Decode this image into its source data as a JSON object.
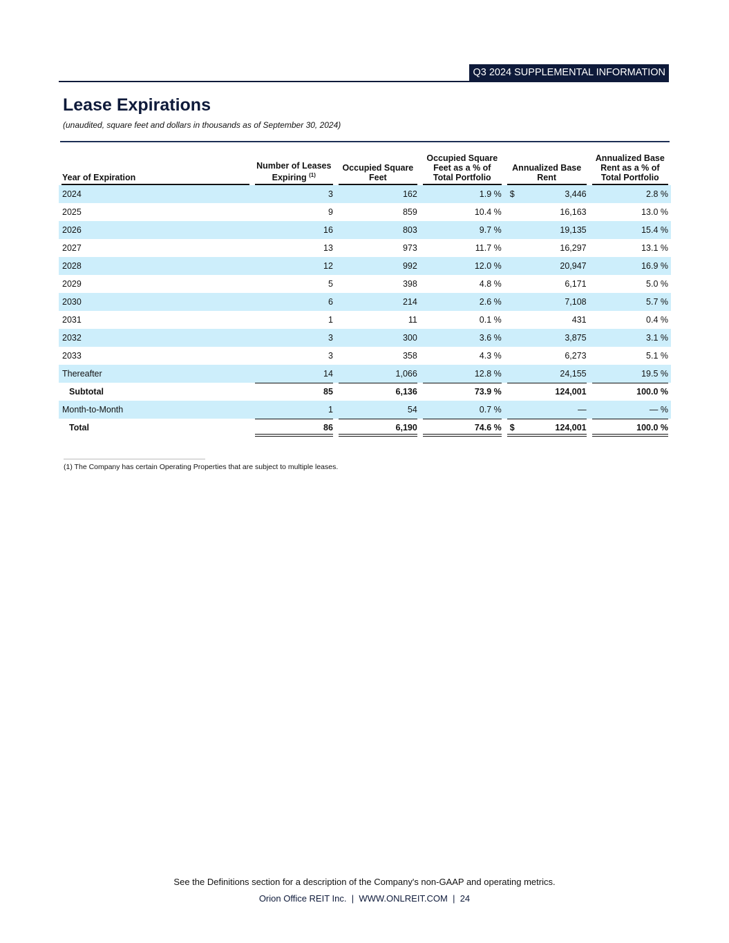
{
  "header": {
    "banner": "Q3 2024 SUPPLEMENTAL INFORMATION"
  },
  "title": "Lease Expirations",
  "subtitle": "(unaudited, square feet and dollars in thousands as of September 30, 2024)",
  "table": {
    "columns": [
      "Year of Expiration",
      "Number of Leases Expiring",
      "Occupied Square Feet",
      "Occupied Square Feet as a % of Total Portfolio",
      "Annualized Base Rent",
      "Annualized Base Rent as a % of Total Portfolio"
    ],
    "column_note": "(1)",
    "rows": [
      {
        "year": "2024",
        "leases": "3",
        "sqft": "162",
        "sqft_pct": "1.9 %",
        "currency": "$",
        "rent": "3,446",
        "rent_pct": "2.8 %"
      },
      {
        "year": "2025",
        "leases": "9",
        "sqft": "859",
        "sqft_pct": "10.4 %",
        "rent": "16,163",
        "rent_pct": "13.0 %"
      },
      {
        "year": "2026",
        "leases": "16",
        "sqft": "803",
        "sqft_pct": "9.7 %",
        "rent": "19,135",
        "rent_pct": "15.4 %"
      },
      {
        "year": "2027",
        "leases": "13",
        "sqft": "973",
        "sqft_pct": "11.7 %",
        "rent": "16,297",
        "rent_pct": "13.1 %"
      },
      {
        "year": "2028",
        "leases": "12",
        "sqft": "992",
        "sqft_pct": "12.0 %",
        "rent": "20,947",
        "rent_pct": "16.9 %"
      },
      {
        "year": "2029",
        "leases": "5",
        "sqft": "398",
        "sqft_pct": "4.8 %",
        "rent": "6,171",
        "rent_pct": "5.0 %"
      },
      {
        "year": "2030",
        "leases": "6",
        "sqft": "214",
        "sqft_pct": "2.6 %",
        "rent": "7,108",
        "rent_pct": "5.7 %"
      },
      {
        "year": "2031",
        "leases": "1",
        "sqft": "11",
        "sqft_pct": "0.1 %",
        "rent": "431",
        "rent_pct": "0.4 %"
      },
      {
        "year": "2032",
        "leases": "3",
        "sqft": "300",
        "sqft_pct": "3.6 %",
        "rent": "3,875",
        "rent_pct": "3.1 %"
      },
      {
        "year": "2033",
        "leases": "3",
        "sqft": "358",
        "sqft_pct": "4.3 %",
        "rent": "6,273",
        "rent_pct": "5.1 %"
      },
      {
        "year": "Thereafter",
        "leases": "14",
        "sqft": "1,066",
        "sqft_pct": "12.8 %",
        "rent": "24,155",
        "rent_pct": "19.5 %"
      },
      {
        "year": "Subtotal",
        "leases": "85",
        "sqft": "6,136",
        "sqft_pct": "73.9 %",
        "rent": "124,001",
        "rent_pct": "100.0 %"
      },
      {
        "year": "Month-to-Month",
        "leases": "1",
        "sqft": "54",
        "sqft_pct": "0.7 %",
        "rent": "—",
        "rent_pct": "— %"
      },
      {
        "year": "Total",
        "leases": "86",
        "sqft": "6,190",
        "sqft_pct": "74.6 %",
        "currency": "$",
        "rent": "124,001",
        "rent_pct": "100.0 %"
      }
    ]
  },
  "footnote": "(1) The Company has certain Operating Properties that are subject to multiple leases.",
  "footer": {
    "note": "See the Definitions section for a description of the Company's non-GAAP and operating metrics.",
    "company": "Orion Office REIT Inc.",
    "website": "WWW.ONLREIT.COM",
    "page": "24"
  }
}
